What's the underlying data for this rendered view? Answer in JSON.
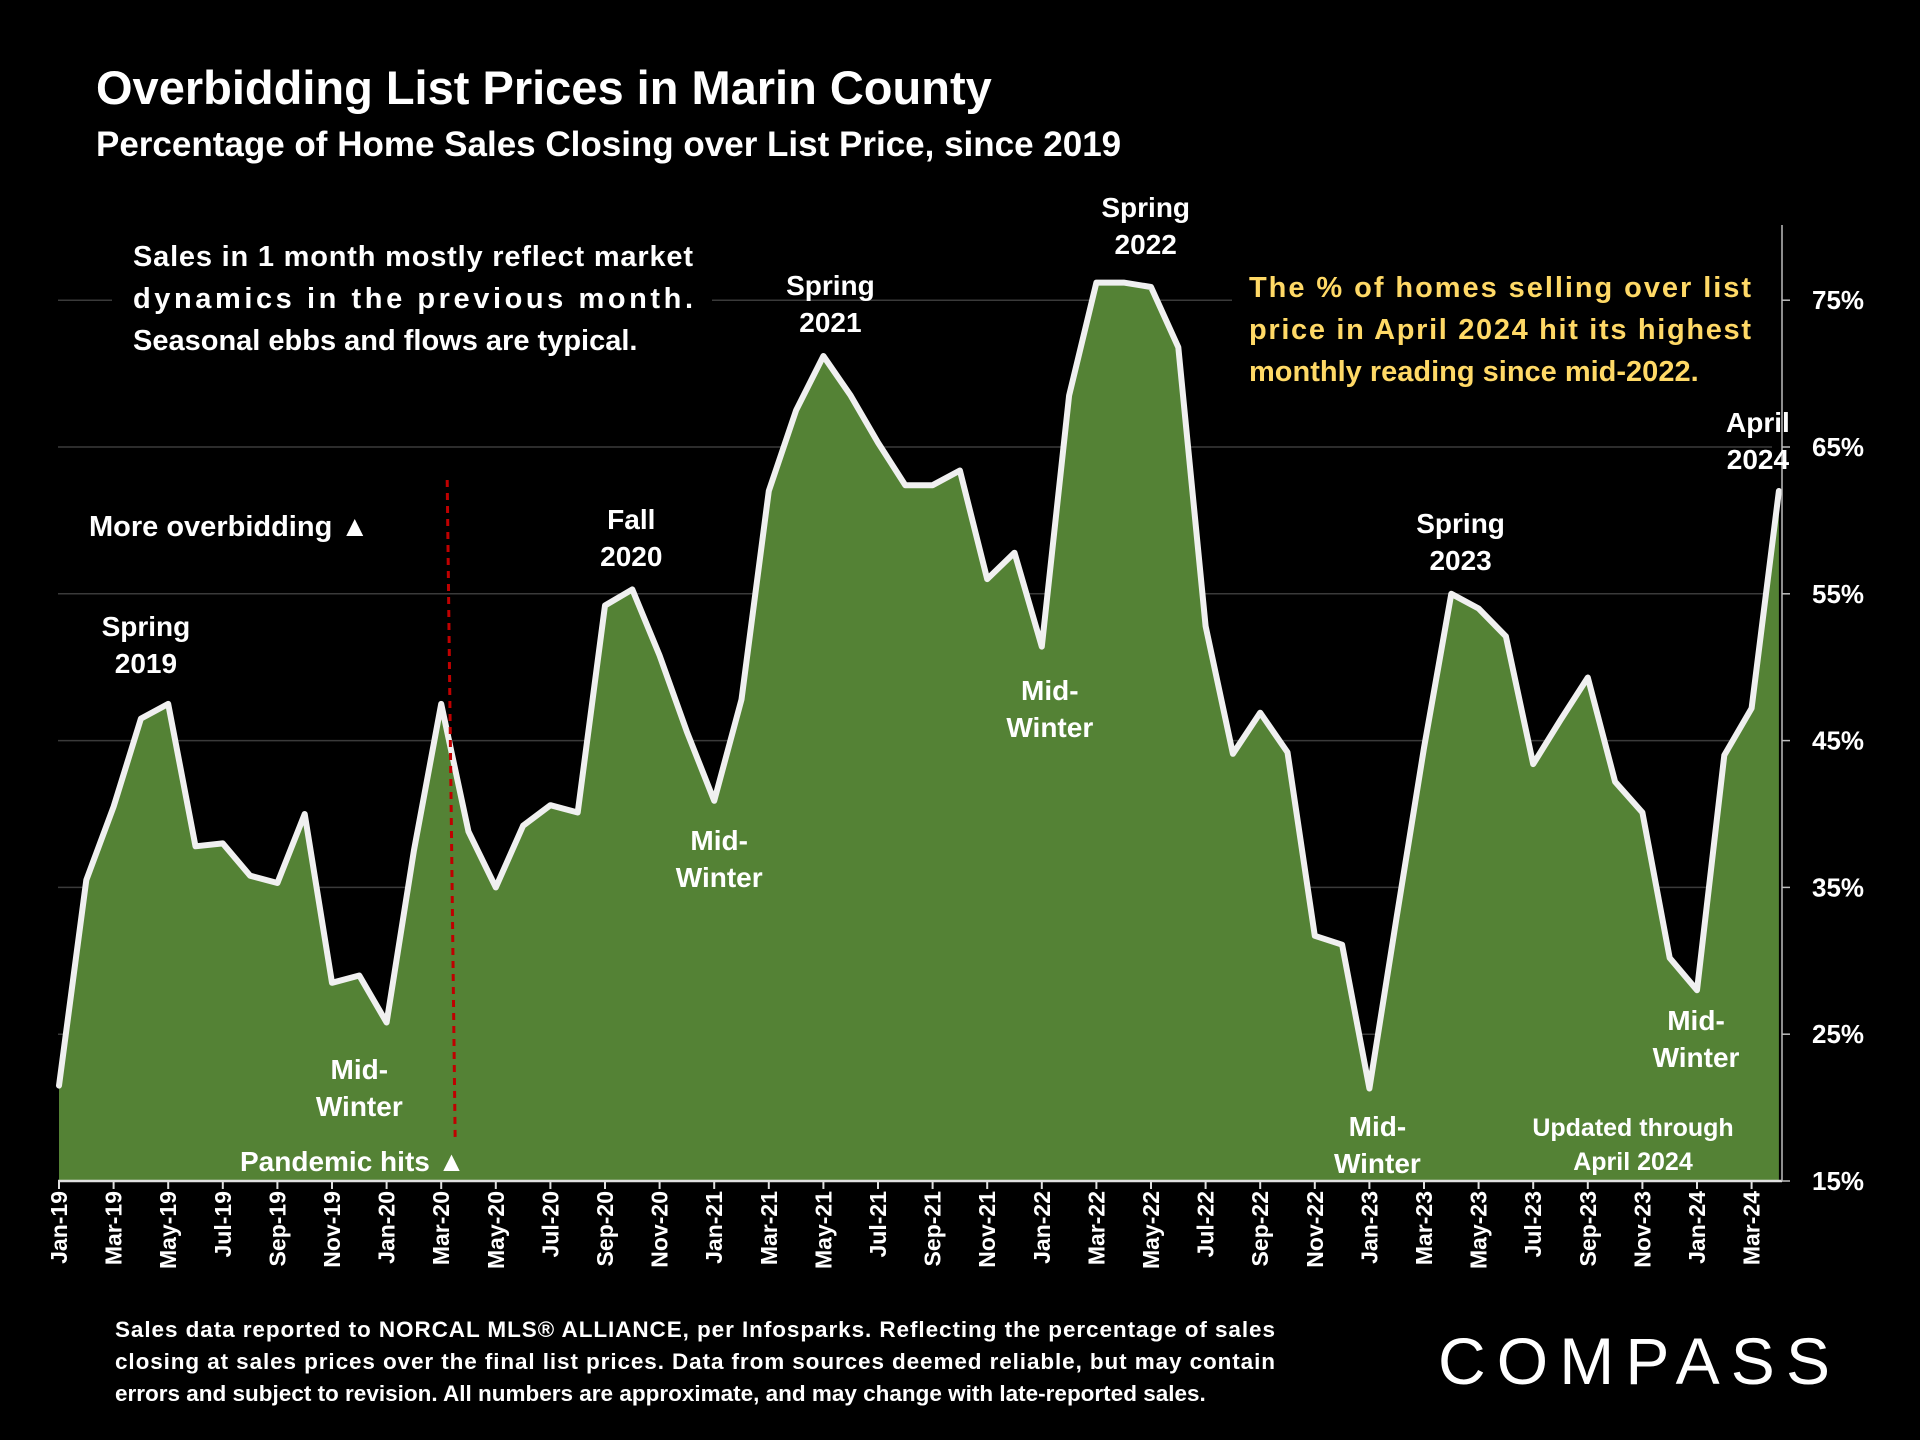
{
  "title": "Overbidding List Prices in Marin County",
  "subtitle": "Percentage of Home Sales Closing over List Price, since 2019",
  "note_left": [
    "Sales in 1 month mostly reflect market",
    "dynamics in the previous month.",
    "Seasonal ebbs and flows are typical."
  ],
  "note_right": [
    "The % of homes selling over list",
    "price in April 2024 hit its highest",
    "monthly reading since mid-2022."
  ],
  "more_overbidding": "More overbidding ▲",
  "pandemic_label": "Pandemic hits ▲",
  "updated_label": [
    "Updated through",
    "April 2024"
  ],
  "footnote": [
    "Sales data reported to NORCAL MLS® ALLIANCE, per Infosparks. Reflecting the percentage of sales",
    "closing at sales prices over the final list prices. Data from sources deemed reliable, but may contain",
    "errors and subject to revision. All numbers are approximate, and may change with late-reported sales."
  ],
  "logo_text": "COMPASS",
  "colors": {
    "background": "#000000",
    "area_fill": "#548235",
    "line": "#f0f0f0",
    "highlight_text": "#ffd966",
    "pandemic_line": "#c00000",
    "grid": "#3a3a3a"
  },
  "chart_data": {
    "type": "area",
    "title": "Overbidding List Prices in Marin County",
    "subtitle": "Percentage of Home Sales Closing over List Price, since 2019",
    "xlabel": "",
    "ylabel": "",
    "ylim": [
      15,
      80
    ],
    "yticks": [
      "15%",
      "25%",
      "35%",
      "45%",
      "55%",
      "65%",
      "75%"
    ],
    "ytick_values": [
      15,
      25,
      35,
      45,
      55,
      65,
      75
    ],
    "grid": true,
    "xtick_labels": [
      "Jan-19",
      "Mar-19",
      "May-19",
      "Jul-19",
      "Sep-19",
      "Nov-19",
      "Jan-20",
      "Mar-20",
      "May-20",
      "Jul-20",
      "Sep-20",
      "Nov-20",
      "Jan-21",
      "Mar-21",
      "May-21",
      "Jul-21",
      "Sep-21",
      "Nov-21",
      "Jan-22",
      "Mar-22",
      "May-22",
      "Jul-22",
      "Sep-22",
      "Nov-22",
      "Jan-23",
      "Mar-23",
      "May-23",
      "Jul-23",
      "Sep-23",
      "Nov-23",
      "Jan-24",
      "Mar-24"
    ],
    "series": [
      {
        "name": "% of home sales closing over list price",
        "x": [
          "Jan-19",
          "Feb-19",
          "Mar-19",
          "Apr-19",
          "May-19",
          "Jun-19",
          "Jul-19",
          "Aug-19",
          "Sep-19",
          "Oct-19",
          "Nov-19",
          "Dec-19",
          "Jan-20",
          "Feb-20",
          "Mar-20",
          "Apr-20",
          "May-20",
          "Jun-20",
          "Jul-20",
          "Aug-20",
          "Sep-20",
          "Oct-20",
          "Nov-20",
          "Dec-20",
          "Jan-21",
          "Feb-21",
          "Mar-21",
          "Apr-21",
          "May-21",
          "Jun-21",
          "Jul-21",
          "Aug-21",
          "Sep-21",
          "Oct-21",
          "Nov-21",
          "Dec-21",
          "Jan-22",
          "Feb-22",
          "Mar-22",
          "Apr-22",
          "May-22",
          "Jun-22",
          "Jul-22",
          "Aug-22",
          "Sep-22",
          "Oct-22",
          "Nov-22",
          "Dec-22",
          "Jan-23",
          "Feb-23",
          "Mar-23",
          "Apr-23",
          "May-23",
          "Jun-23",
          "Jul-23",
          "Aug-23",
          "Sep-23",
          "Oct-23",
          "Nov-23",
          "Dec-23",
          "Jan-24",
          "Feb-24",
          "Mar-24",
          "Apr-24"
        ],
        "values": [
          21.5,
          35.5,
          40.5,
          46.5,
          47.5,
          37.8,
          38.0,
          35.8,
          35.3,
          40.0,
          28.5,
          29.0,
          25.8,
          37.5,
          47.5,
          38.8,
          35.0,
          39.2,
          40.6,
          40.1,
          54.2,
          55.3,
          50.8,
          45.6,
          40.9,
          47.8,
          62.0,
          67.5,
          71.2,
          68.5,
          65.3,
          62.4,
          62.4,
          63.4,
          56.0,
          57.8,
          51.4,
          68.5,
          76.2,
          76.2,
          75.9,
          71.8,
          52.8,
          44.1,
          46.9,
          44.2,
          31.7,
          31.1,
          21.3,
          33.0,
          44.5,
          55.0,
          54.0,
          52.1,
          43.4,
          46.4,
          49.3,
          42.2,
          40.1,
          30.2,
          28.0,
          44.0,
          47.2,
          62.0
        ]
      }
    ],
    "annotations": [
      {
        "month": "Apr-19",
        "text": [
          "Spring",
          "2019"
        ]
      },
      {
        "month": "Dec-19",
        "text": [
          "Mid-",
          "Winter"
        ]
      },
      {
        "month": "Oct-20",
        "text": [
          "Fall",
          "2020"
        ]
      },
      {
        "month": "Jan-21",
        "text": [
          "Mid-",
          "Winter"
        ]
      },
      {
        "month": "May-21",
        "text": [
          "Spring",
          "2021"
        ]
      },
      {
        "month": "Jan-22",
        "text": [
          "Mid-",
          "Winter"
        ]
      },
      {
        "month": "Apr-22",
        "text": [
          "Spring",
          "2022"
        ]
      },
      {
        "month": "Jan-23",
        "text": [
          "Mid-",
          "Winter"
        ]
      },
      {
        "month": "May-23",
        "text": [
          "Spring",
          "2023"
        ]
      },
      {
        "month": "Jan-24",
        "text": [
          "Mid-",
          "Winter"
        ]
      },
      {
        "month": "Apr-24",
        "text": [
          "April",
          "2024"
        ]
      }
    ],
    "pandemic_month": "Mar-20"
  }
}
